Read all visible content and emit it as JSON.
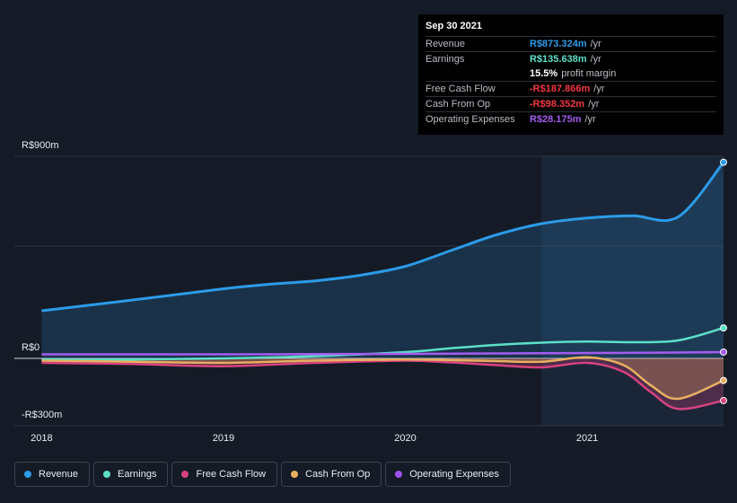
{
  "tooltip": {
    "date": "Sep 30 2021",
    "rows": [
      {
        "name": "Revenue",
        "value": "R$873.324m",
        "unit": "/yr",
        "color": "#2c9be8"
      },
      {
        "name": "Earnings",
        "value": "R$135.638m",
        "unit": "/yr",
        "color": "#5ce0c8"
      },
      {
        "name": "",
        "value": "15.5%",
        "unit": "profit margin",
        "color": "#ffffff"
      },
      {
        "name": "Free Cash Flow",
        "value": "-R$187.866m",
        "unit": "/yr",
        "color": "#f2373f"
      },
      {
        "name": "Cash From Op",
        "value": "-R$98.352m",
        "unit": "/yr",
        "color": "#f2373f"
      },
      {
        "name": "Operating Expenses",
        "value": "R$28.175m",
        "unit": "/yr",
        "color": "#a45cf0"
      }
    ]
  },
  "legend": [
    {
      "label": "Revenue",
      "color": "#2c9be8"
    },
    {
      "label": "Earnings",
      "color": "#5ce0c8"
    },
    {
      "label": "Free Cash Flow",
      "color": "#d6427f"
    },
    {
      "label": "Cash From Op",
      "color": "#e8b060"
    },
    {
      "label": "Operating Expenses",
      "color": "#9c52e8"
    }
  ],
  "chart_data": {
    "type": "line",
    "title": "",
    "xlabel": "",
    "ylabel": "",
    "y_tick_labels": [
      "R$900m",
      "R$0",
      "-R$300m"
    ],
    "x_tick_labels": [
      "2018",
      "2019",
      "2020",
      "2021"
    ],
    "x_ticks": [
      2018,
      2019,
      2020,
      2021
    ],
    "xlim": [
      2017.85,
      2021.75
    ],
    "ylim": [
      -300,
      900
    ],
    "gridlines_at": [
      900,
      500,
      0,
      -300
    ],
    "highlight_from": 2020.75,
    "series": [
      {
        "name": "Revenue",
        "color": "#2c9be8",
        "fill": true,
        "x": [
          2018.0,
          2018.5,
          2019.0,
          2019.25,
          2019.5,
          2019.75,
          2020.0,
          2020.25,
          2020.5,
          2020.75,
          2021.0,
          2021.25,
          2021.5,
          2021.75
        ],
        "y": [
          212,
          260,
          310,
          330,
          345,
          370,
          410,
          480,
          550,
          600,
          625,
          635,
          630,
          873.324
        ]
      },
      {
        "name": "Earnings",
        "color": "#5ce0c8",
        "fill": false,
        "x": [
          2018.0,
          2018.5,
          2019.0,
          2019.5,
          2020.0,
          2020.25,
          2020.5,
          2020.75,
          2021.0,
          2021.25,
          2021.5,
          2021.75
        ],
        "y": [
          -5,
          -5,
          0,
          10,
          28,
          45,
          60,
          70,
          75,
          72,
          80,
          135.638
        ]
      },
      {
        "name": "Free Cash Flow",
        "color": "#d6427f",
        "fill": true,
        "x": [
          2018.0,
          2018.5,
          2019.0,
          2019.5,
          2020.0,
          2020.25,
          2020.5,
          2020.75,
          2021.0,
          2021.2,
          2021.35,
          2021.5,
          2021.75
        ],
        "y": [
          -20,
          -25,
          -35,
          -20,
          -10,
          -18,
          -30,
          -40,
          -20,
          -60,
          -150,
          -225,
          -187.866
        ]
      },
      {
        "name": "Cash From Op",
        "color": "#e8b060",
        "fill": true,
        "x": [
          2018.0,
          2018.5,
          2019.0,
          2019.5,
          2020.0,
          2020.25,
          2020.5,
          2020.75,
          2021.0,
          2021.2,
          2021.35,
          2021.5,
          2021.75
        ],
        "y": [
          -10,
          -15,
          -20,
          -10,
          -5,
          -8,
          -12,
          -15,
          5,
          -30,
          -120,
          -180,
          -98.352
        ]
      },
      {
        "name": "Operating Expenses",
        "color": "#a45cf0",
        "fill": false,
        "x": [
          2018.0,
          2018.5,
          2019.0,
          2019.5,
          2020.0,
          2020.5,
          2021.0,
          2021.5,
          2021.75
        ],
        "y": [
          18,
          18,
          18,
          19,
          20,
          22,
          24,
          26,
          28.175
        ]
      }
    ]
  }
}
